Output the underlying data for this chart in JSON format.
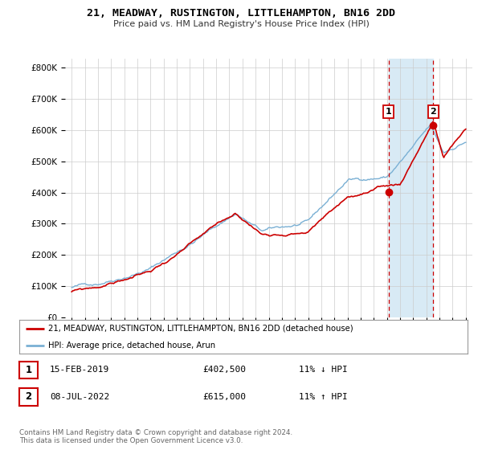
{
  "title": "21, MEADWAY, RUSTINGTON, LITTLEHAMPTON, BN16 2DD",
  "subtitle": "Price paid vs. HM Land Registry's House Price Index (HPI)",
  "ylabel_ticks": [
    "£0",
    "£100K",
    "£200K",
    "£300K",
    "£400K",
    "£500K",
    "£600K",
    "£700K",
    "£800K"
  ],
  "ytick_values": [
    0,
    100000,
    200000,
    300000,
    400000,
    500000,
    600000,
    700000,
    800000
  ],
  "ylim": [
    0,
    830000
  ],
  "xlim_start": 1994.5,
  "xlim_end": 2025.5,
  "line_color_property": "#cc0000",
  "line_color_hpi": "#7ab0d4",
  "shade_color": "#d8eaf5",
  "sale1_date": 2019.12,
  "sale1_price": 402500,
  "sale1_label": "1",
  "sale2_date": 2022.52,
  "sale2_price": 615000,
  "sale2_label": "2",
  "legend_property": "21, MEADWAY, RUSTINGTON, LITTLEHAMPTON, BN16 2DD (detached house)",
  "legend_hpi": "HPI: Average price, detached house, Arun",
  "table_rows": [
    {
      "label": "1",
      "date": "15-FEB-2019",
      "price": "£402,500",
      "hpi": "11% ↓ HPI"
    },
    {
      "label": "2",
      "date": "08-JUL-2022",
      "price": "£615,000",
      "hpi": "11% ↑ HPI"
    }
  ],
  "footer": "Contains HM Land Registry data © Crown copyright and database right 2024.\nThis data is licensed under the Open Government Licence v3.0.",
  "background_color": "#ffffff",
  "grid_color": "#cccccc",
  "xtick_years": [
    1995,
    1996,
    1997,
    1998,
    1999,
    2000,
    2001,
    2002,
    2003,
    2004,
    2005,
    2006,
    2007,
    2008,
    2009,
    2010,
    2011,
    2012,
    2013,
    2014,
    2015,
    2016,
    2017,
    2018,
    2019,
    2020,
    2021,
    2022,
    2023,
    2024,
    2025
  ]
}
